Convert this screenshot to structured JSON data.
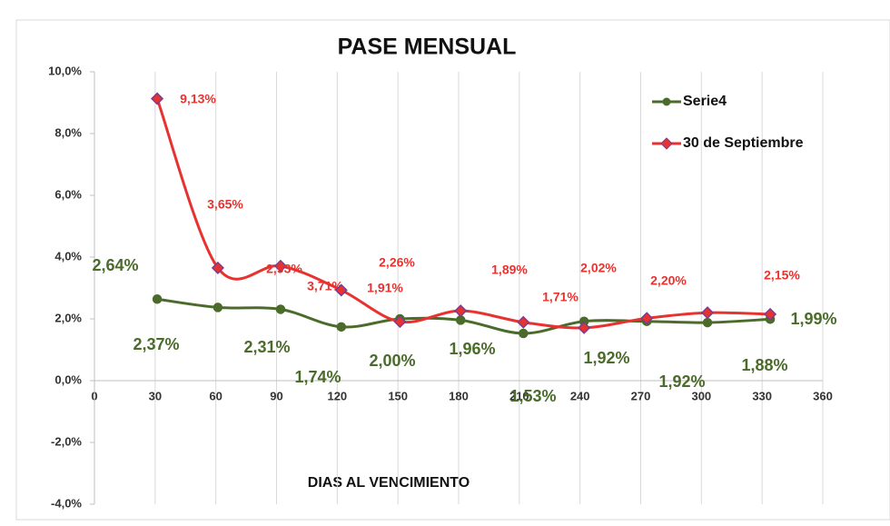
{
  "chart_data": {
    "type": "line",
    "title": "PASE MENSUAL",
    "x_label": "DIAS AL VENCIMIENTO",
    "x": [
      31,
      61,
      92,
      122,
      151,
      181,
      212,
      242,
      273,
      303,
      334
    ],
    "xlim": [
      0,
      360
    ],
    "xticks": [
      0,
      30,
      60,
      90,
      120,
      150,
      180,
      210,
      240,
      270,
      300,
      330,
      360
    ],
    "ylim": [
      -4,
      10
    ],
    "yticks": [
      {
        "value": -4,
        "label": "-4,0%"
      },
      {
        "value": -2,
        "label": "-2,0%"
      },
      {
        "value": 0,
        "label": "0,0%"
      },
      {
        "value": 2,
        "label": "2,0%"
      },
      {
        "value": 4,
        "label": "4,0%"
      },
      {
        "value": 6,
        "label": "6,0%"
      },
      {
        "value": 8,
        "label": "8,0%"
      },
      {
        "value": 10,
        "label": "10,0%"
      }
    ],
    "grid": true,
    "legend": "top-right",
    "series": [
      {
        "name": "Serie4",
        "color": "#4a6b2a",
        "values": [
          2.64,
          2.37,
          2.31,
          1.74,
          2.0,
          1.96,
          1.53,
          1.92,
          1.92,
          1.88,
          1.99
        ],
        "value_labels": [
          "2,64%",
          "2,37%",
          "2,31%",
          "1,74%",
          "2,00%",
          "1,96%",
          "1,53%",
          "1,92%",
          "1,92%",
          "1,88%",
          "1,99%"
        ]
      },
      {
        "name": "30 de Septiembre",
        "color": "#e8322f",
        "values": [
          9.13,
          3.65,
          3.71,
          2.93,
          1.91,
          2.26,
          1.89,
          1.71,
          2.02,
          2.2,
          2.15
        ],
        "value_labels": [
          "9,13%",
          "3,65%",
          "3,71%",
          "2,93%",
          "1,91%",
          "2,26%",
          "1,89%",
          "1,71%",
          "2,02%",
          "2,20%",
          "2,15%"
        ]
      }
    ]
  }
}
